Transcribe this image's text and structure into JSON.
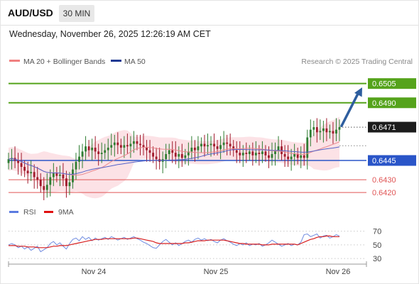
{
  "header": {
    "symbol": "AUD/USD",
    "timeframe": "30 MIN",
    "datetime": "Wednesday, November 26, 2025 12:26:19 AM CET"
  },
  "legend": {
    "ma20": "MA 20 + Bollinger Bands",
    "ma50": "MA 50",
    "source": "Research © 2025 Trading Central"
  },
  "rsi_legend": {
    "rsi": "RSI",
    "ma9": "9MA"
  },
  "colors": {
    "bull": "#2e7d32",
    "bear": "#a01a2c",
    "bands": "#fbd8dd",
    "ma20": "#e98a90",
    "ma50": "#5563c8",
    "resistance": "#55a31b",
    "pivot": "#2a55c8",
    "support": "#e05555",
    "arrow": "#2e5e9e",
    "rsi": "#6f8be0",
    "rsi_ma": "#d81e1e"
  },
  "chart_data": [
    {
      "type": "candlestick",
      "xlabel": "",
      "ylabel": "",
      "x_ticks": [
        "Nov 24",
        "Nov 25",
        "Nov 26"
      ],
      "ylim": [
        0.6414,
        0.6517
      ],
      "levels": [
        {
          "name": "resistance-2",
          "value": 0.6505,
          "label": "0.6505",
          "kind": "resistance"
        },
        {
          "name": "resistance-1",
          "value": 0.649,
          "label": "0.6490",
          "kind": "resistance"
        },
        {
          "name": "last-price",
          "value": 0.6471,
          "label": "0.6471",
          "kind": "last"
        },
        {
          "name": "pivot",
          "value": 0.6445,
          "label": "0.6445",
          "kind": "pivot"
        },
        {
          "name": "support-1",
          "value": 0.643,
          "label": "0.6430",
          "kind": "support"
        },
        {
          "name": "support-2",
          "value": 0.642,
          "label": "0.6420",
          "kind": "support"
        }
      ],
      "forecast_arrow": {
        "from": 0.6472,
        "to": 0.6502
      },
      "close": [
        0.6446,
        0.6447,
        0.6445,
        0.6443,
        0.644,
        0.6437,
        0.6435,
        0.6436,
        0.6432,
        0.643,
        0.6425,
        0.6422,
        0.6426,
        0.6432,
        0.6435,
        0.6433,
        0.6434,
        0.6431,
        0.6425,
        0.6428,
        0.6438,
        0.6444,
        0.6448,
        0.6452,
        0.6456,
        0.6453,
        0.6455,
        0.6452,
        0.645,
        0.6451,
        0.6453,
        0.6455,
        0.6457,
        0.6459,
        0.6457,
        0.6455,
        0.6457,
        0.6456,
        0.6458,
        0.646,
        0.6458,
        0.6457,
        0.6455,
        0.6453,
        0.6451,
        0.6448,
        0.6446,
        0.6444,
        0.6446,
        0.645,
        0.6453,
        0.6451,
        0.6448,
        0.645,
        0.6447,
        0.6449,
        0.6452,
        0.6455,
        0.6453,
        0.6456,
        0.6458,
        0.6456,
        0.6457,
        0.6458,
        0.6456,
        0.6454,
        0.6457,
        0.6459,
        0.6458,
        0.6456,
        0.6453,
        0.6451,
        0.6449,
        0.6451,
        0.645,
        0.6452,
        0.6449,
        0.6451,
        0.645,
        0.6452,
        0.6449,
        0.6447,
        0.645,
        0.6453,
        0.6456,
        0.645,
        0.6448,
        0.6446,
        0.6448,
        0.645,
        0.6447,
        0.6449,
        0.6447,
        0.6463,
        0.6469,
        0.6471,
        0.6467,
        0.6468,
        0.647,
        0.6467,
        0.6468,
        0.6466,
        0.6469,
        0.6471
      ]
    },
    {
      "type": "line",
      "name": "RSI",
      "ylim": [
        25,
        80
      ],
      "y_ticks": [
        70,
        50,
        30
      ],
      "series": [
        {
          "name": "RSI",
          "values": [
            50,
            52,
            50,
            46,
            48,
            44,
            47,
            42,
            45,
            48,
            40,
            43,
            46,
            52,
            55,
            50,
            53,
            48,
            44,
            52,
            58,
            60,
            56,
            62,
            58,
            61,
            56,
            60,
            57,
            59,
            61,
            58,
            62,
            60,
            57,
            59,
            61,
            58,
            60,
            62,
            59,
            57,
            54,
            52,
            49,
            46,
            45,
            50,
            55,
            58,
            54,
            50,
            53,
            49,
            52,
            55,
            57,
            54,
            58,
            60,
            57,
            59,
            56,
            58,
            55,
            53,
            57,
            59,
            56,
            54,
            51,
            49,
            52,
            50,
            53,
            49,
            51,
            50,
            52,
            48,
            50,
            53,
            57,
            54,
            51,
            48,
            50,
            52,
            49,
            51,
            50,
            54,
            65,
            66,
            62,
            64,
            66,
            60,
            63,
            64,
            60,
            62,
            65,
            63
          ]
        },
        {
          "name": "9MA",
          "values": [
            49,
            49,
            49,
            48,
            48,
            48,
            47,
            47,
            47,
            46,
            46,
            46,
            46,
            47,
            48,
            48,
            49,
            49,
            49,
            50,
            51,
            52,
            53,
            54,
            55,
            56,
            57,
            58,
            58,
            58,
            59,
            59,
            59,
            59,
            59,
            59,
            59,
            59,
            59,
            60,
            60,
            59,
            58,
            57,
            56,
            55,
            53,
            52,
            52,
            52,
            52,
            52,
            52,
            52,
            52,
            53,
            53,
            54,
            55,
            56,
            56,
            56,
            57,
            57,
            57,
            57,
            57,
            57,
            56,
            55,
            54,
            53,
            52,
            52,
            51,
            51,
            51,
            51,
            51,
            50,
            50,
            50,
            51,
            51,
            51,
            51,
            51,
            51,
            51,
            51,
            50,
            52,
            54,
            56,
            58,
            59,
            61,
            62,
            62,
            63,
            63,
            62,
            62,
            62
          ]
        }
      ]
    }
  ]
}
